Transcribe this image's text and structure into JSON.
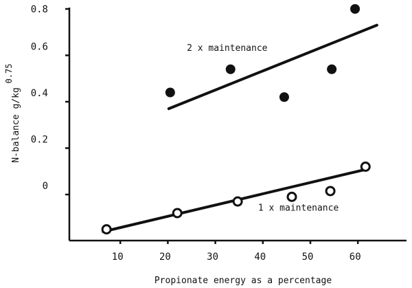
{
  "chart_data": {
    "type": "scatter",
    "title": "",
    "xlabel": "Propionate energy as a percentage",
    "ylabel": "N-balance g/kg",
    "ylabel_superscript": "0.75",
    "xlim": [
      0,
      70
    ],
    "ylim": [
      -0.2,
      0.8
    ],
    "xticks": [
      10,
      20,
      30,
      40,
      50,
      60
    ],
    "xtick_labels": [
      "10",
      "20",
      "30",
      "40",
      "50",
      "60"
    ],
    "yticks": [
      0,
      0.2,
      0.4,
      0.6,
      0.8
    ],
    "ytick_labels": [
      "0",
      "0.2",
      "0.4",
      "0.6",
      "0.8"
    ],
    "grid": false,
    "series": [
      {
        "name": "2 x maintenance",
        "marker": "filled-circle",
        "points": [
          [
            20.5,
            0.44
          ],
          [
            33.2,
            0.54
          ],
          [
            44.5,
            0.42
          ],
          [
            54.5,
            0.54
          ],
          [
            59.4,
            0.8
          ]
        ],
        "fit_line": [
          [
            20.2,
            0.37
          ],
          [
            64,
            0.73
          ]
        ],
        "label_at": [
          24,
          0.62
        ]
      },
      {
        "name": "1 x maintenance",
        "marker": "open-circle",
        "points": [
          [
            7.1,
            -0.15
          ],
          [
            22,
            -0.08
          ],
          [
            34.7,
            -0.03
          ],
          [
            46.1,
            -0.01
          ],
          [
            54.2,
            0.015
          ],
          [
            61.6,
            0.12
          ]
        ],
        "fit_line": [
          [
            6.4,
            -0.16
          ],
          [
            61.4,
            0.107
          ]
        ],
        "label_at": [
          39,
          -0.07
        ]
      }
    ],
    "colors": {
      "ink": "#111111",
      "background": "#ffffff"
    }
  }
}
